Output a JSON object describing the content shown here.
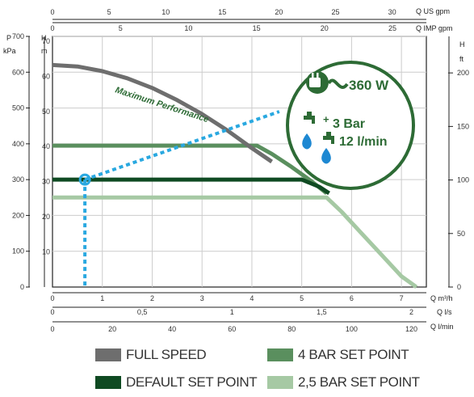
{
  "chart_data": {
    "type": "line",
    "axes": {
      "pressure_kpa": {
        "label_top": "P",
        "label_unit": "kPa",
        "ticks": [
          0,
          100,
          200,
          300,
          400,
          500,
          600,
          700
        ]
      },
      "head_m": {
        "label_top": "H",
        "label_unit": "m",
        "ticks": [
          10,
          20,
          30,
          40,
          50,
          60,
          70
        ]
      },
      "head_ft": {
        "label_top": "H",
        "label_unit": "ft",
        "ticks": [
          0,
          50,
          100,
          150,
          200
        ]
      },
      "flow_m3h": {
        "label": "Q m³/h",
        "ticks": [
          0,
          1,
          2,
          3,
          4,
          5,
          6,
          7
        ],
        "range": [
          0,
          7.5
        ]
      },
      "flow_ls": {
        "label": "Q l/s",
        "ticks": [
          "0",
          "0,5",
          "1",
          "1,5",
          "2"
        ]
      },
      "flow_lmin": {
        "label": "Q l/min",
        "ticks": [
          0,
          20,
          40,
          60,
          80,
          100,
          120
        ]
      },
      "flow_usgpm": {
        "label": "Q US gpm",
        "ticks": [
          0,
          5,
          10,
          15,
          20,
          25,
          30
        ]
      },
      "flow_impgpm": {
        "label": "Q IMP gpm",
        "ticks": [
          0,
          5,
          10,
          15,
          20,
          25
        ]
      }
    },
    "xlim_m3h": [
      0,
      7.5
    ],
    "ylim_kpa": [
      0,
      700
    ],
    "grid": true,
    "series": [
      {
        "name": "FULL SPEED",
        "color": "#6e6e6e",
        "x": [
          0,
          0.5,
          1,
          1.5,
          2,
          2.5,
          3,
          3.5,
          4,
          4.4
        ],
        "y": [
          620,
          616,
          603,
          583,
          556,
          522,
          483,
          438,
          388,
          350
        ]
      },
      {
        "name": "4 BAR SET POINT",
        "color": "#5a8f5e",
        "x": [
          0,
          4.1,
          4.4,
          4.8,
          5.2,
          5.5
        ],
        "y": [
          395,
          395,
          372,
          335,
          295,
          262
        ]
      },
      {
        "name": "DEFAULT SET POINT",
        "color": "#0f4a22",
        "x": [
          0,
          5.0,
          5.35,
          5.55
        ],
        "y": [
          300,
          300,
          280,
          262
        ]
      },
      {
        "name": "2,5 BAR SET POINT",
        "color": "#a6c9a4",
        "x": [
          0,
          5.5,
          5.8,
          6.2,
          6.6,
          7.0,
          7.3
        ],
        "y": [
          250,
          250,
          210,
          150,
          90,
          30,
          0
        ]
      }
    ],
    "operating_point": {
      "x": 0.65,
      "y": 300
    },
    "operating_line_to": {
      "x": 4.55,
      "y": 490
    },
    "annotations": {
      "max_perf": "Maximum Performance",
      "power": "360 W",
      "pressure": "3 Bar",
      "plus": "+",
      "flow": "12 l/min"
    },
    "colors": {
      "callout_green": "#2d6b35",
      "dot_blue": "#29a8e0",
      "water_blue": "#1e88d2",
      "grid": "#cccccc",
      "axis": "#222222"
    },
    "icons": [
      "plug-icon",
      "faucet-icon",
      "water-drop-icon"
    ]
  },
  "legend": {
    "full_speed": "FULL SPEED",
    "four_bar": "4 BAR SET POINT",
    "default_sp": "DEFAULT SET POINT",
    "two_five_bar": "2,5 BAR SET POINT"
  }
}
